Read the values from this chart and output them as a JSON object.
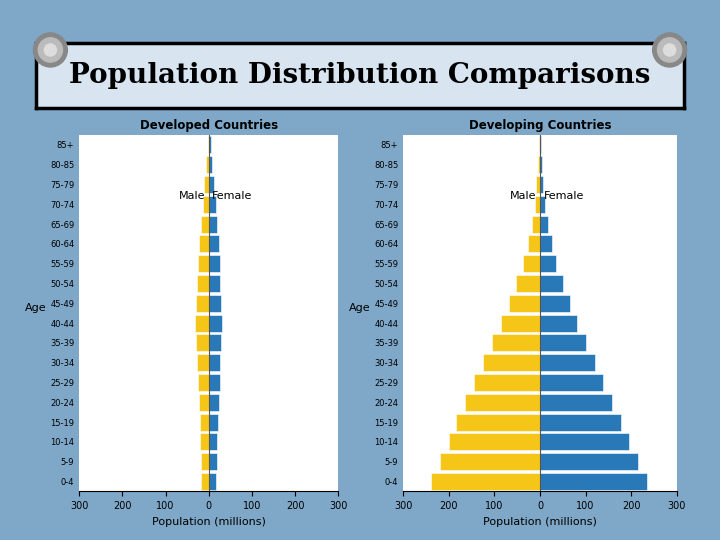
{
  "title": "Population Distribution Comparisons",
  "age_groups": [
    "0-4",
    "5-9",
    "10-14",
    "15-19",
    "20-24",
    "25-29",
    "30-34",
    "35-39",
    "40-44",
    "45-49",
    "50-54",
    "55-59",
    "60-64",
    "65-69",
    "70-74",
    "75-79",
    "80-85",
    "85+"
  ],
  "developed": {
    "title": "Developed Countries",
    "male": [
      18,
      19,
      20,
      21,
      23,
      25,
      27,
      29,
      32,
      30,
      27,
      25,
      22,
      18,
      14,
      10,
      6,
      3
    ],
    "female": [
      17,
      18,
      19,
      21,
      23,
      25,
      26,
      28,
      30,
      29,
      27,
      25,
      23,
      20,
      16,
      12,
      8,
      5
    ]
  },
  "developing": {
    "title": "Developing Countries",
    "male": [
      240,
      220,
      200,
      185,
      165,
      145,
      125,
      105,
      85,
      68,
      52,
      38,
      27,
      18,
      12,
      8,
      4,
      2
    ],
    "female": [
      235,
      215,
      195,
      178,
      158,
      138,
      120,
      100,
      82,
      65,
      50,
      36,
      26,
      17,
      11,
      7,
      4,
      2
    ]
  },
  "male_color": "#F5C518",
  "female_color": "#2979B8",
  "background_outer": "#7EA7C8",
  "background_paper": "#F0F0F8",
  "background_chart": "#FFFFFF",
  "title_bg": "#D8E4F0",
  "xlim": 300,
  "xlabel": "Population (millions)"
}
